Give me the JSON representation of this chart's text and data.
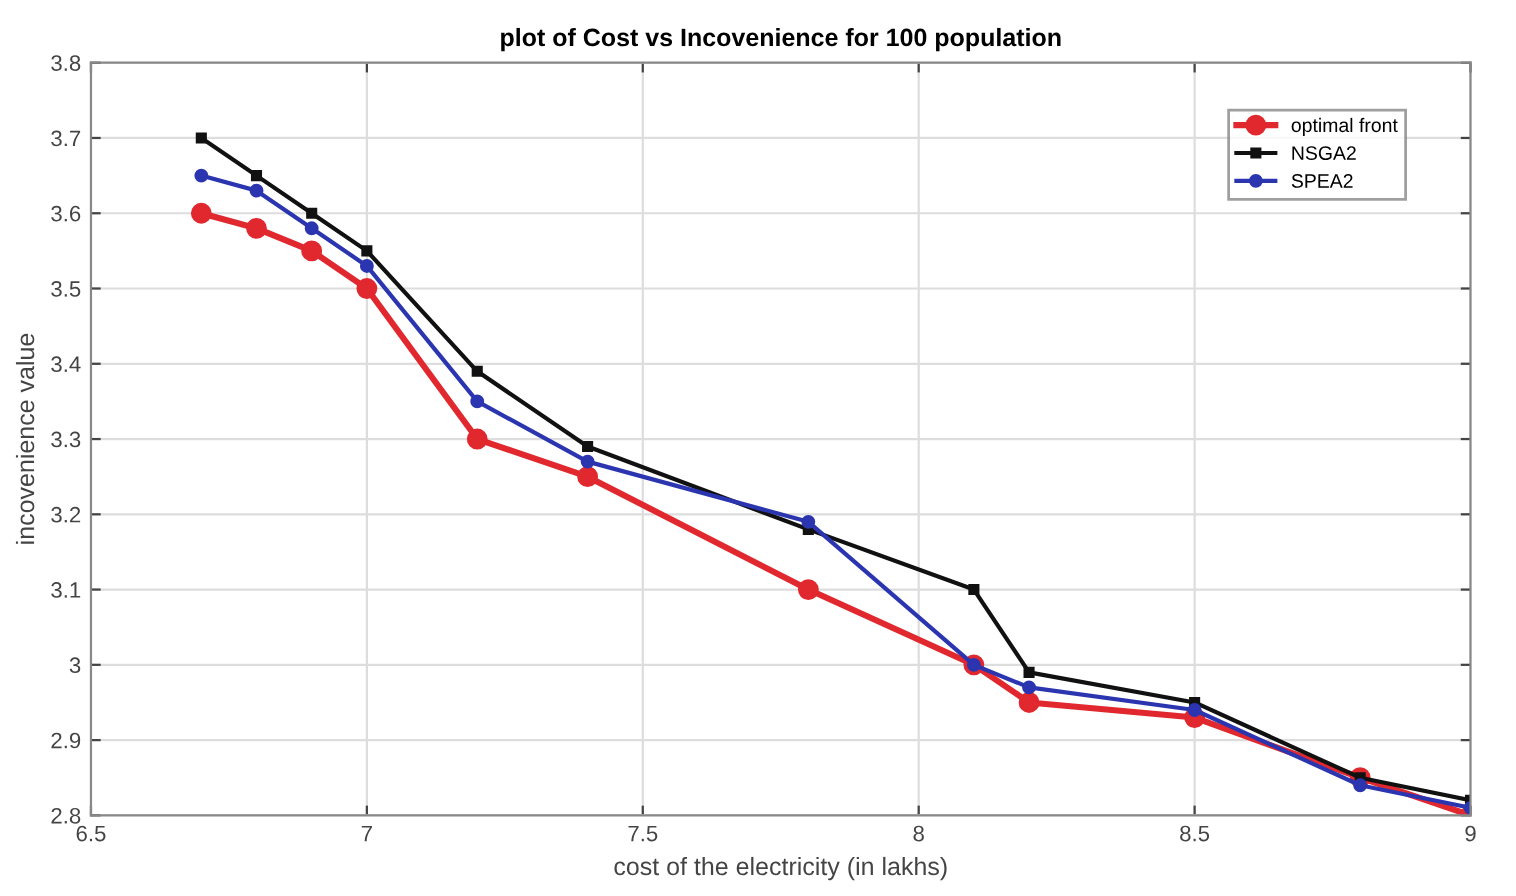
{
  "chart_data": {
    "type": "line",
    "title": "plot of Cost vs Incovenience for 100 population",
    "xlabel": "cost of the electricity (in lakhs)",
    "ylabel": "incovenience value",
    "x": [
      6.7,
      6.8,
      6.9,
      7.0,
      7.2,
      7.4,
      7.8,
      8.1,
      8.2,
      8.5,
      8.8,
      9.0
    ],
    "series": [
      {
        "name": "optimal front",
        "color": "#e0282e",
        "marker": "circle",
        "values": [
          3.6,
          3.58,
          3.55,
          3.5,
          3.3,
          3.25,
          3.1,
          3.0,
          2.95,
          2.93,
          2.85,
          2.8
        ]
      },
      {
        "name": "NSGA2",
        "color": "#111111",
        "marker": "square",
        "values": [
          3.7,
          3.65,
          3.6,
          3.55,
          3.39,
          3.29,
          3.18,
          3.1,
          2.99,
          2.95,
          2.85,
          2.82
        ]
      },
      {
        "name": "SPEA2",
        "color": "#2b35b0",
        "marker": "circle",
        "values": [
          3.65,
          3.63,
          3.58,
          3.53,
          3.35,
          3.27,
          3.19,
          3.0,
          2.97,
          2.94,
          2.84,
          2.81
        ]
      }
    ],
    "xlim": [
      6.5,
      9
    ],
    "xticks": [
      6.5,
      7,
      7.5,
      8,
      8.5,
      9
    ],
    "ylim": [
      2.8,
      3.8
    ],
    "yticks": [
      2.8,
      2.9,
      3,
      3.1,
      3.2,
      3.3,
      3.4,
      3.5,
      3.6,
      3.7,
      3.8
    ],
    "grid": true,
    "legend": "top right",
    "line_style": "solid"
  }
}
